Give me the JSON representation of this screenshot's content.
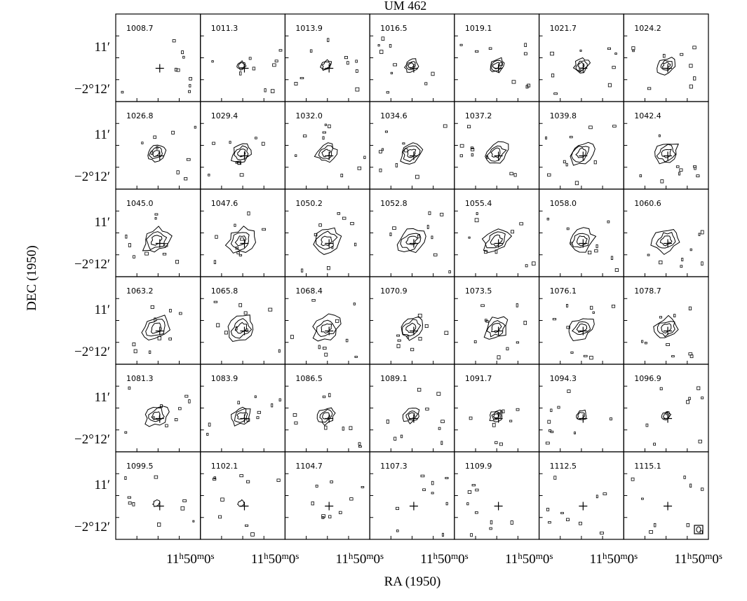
{
  "title": "UM 462",
  "x_axis_label": "RA (1950)",
  "y_axis_label": "DEC (1950)",
  "ra_tick_labels": [
    "11h50m0s",
    "11h50m0s",
    "11h50m0s",
    "11h50m0s",
    "11h50m0s",
    "11h50m0s",
    "11h50m0s"
  ],
  "dec_tick_labels": [
    "11′",
    "−2°12′"
  ],
  "panels": [
    "1008.7",
    "1011.3",
    "1013.9",
    "1016.5",
    "1019.1",
    "1021.7",
    "1024.2",
    "1026.8",
    "1029.4",
    "1032.0",
    "1034.6",
    "1037.2",
    "1039.8",
    "1042.4",
    "1045.0",
    "1047.6",
    "1050.2",
    "1052.8",
    "1055.4",
    "1058.0",
    "1060.6",
    "1063.2",
    "1065.8",
    "1068.4",
    "1070.9",
    "1073.5",
    "1076.1",
    "1078.7",
    "1081.3",
    "1083.9",
    "1086.5",
    "1089.1",
    "1091.7",
    "1094.3",
    "1096.9",
    "1099.5",
    "1102.1",
    "1104.7",
    "1107.3",
    "1109.9",
    "1112.5",
    "1115.1"
  ]
}
